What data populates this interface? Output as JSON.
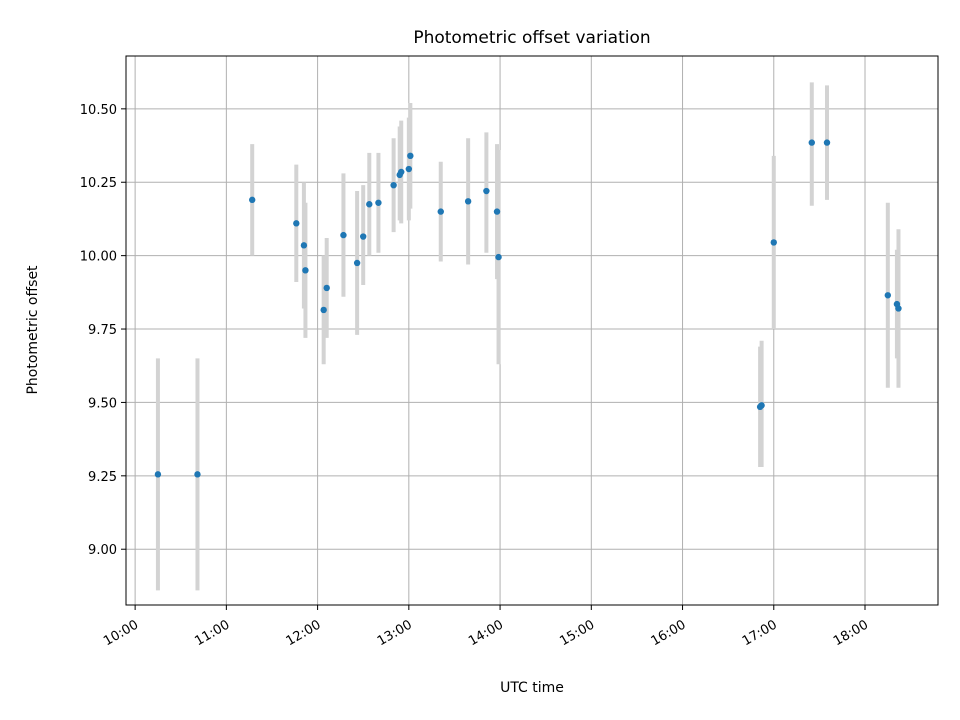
{
  "chart_data": {
    "type": "scatter",
    "title": "Photometric offset variation",
    "xlabel": "UTC time",
    "ylabel": "Photometric offset",
    "x_unit": "time of day (HH:MM)",
    "xlim": [
      "09:54",
      "18:48"
    ],
    "ylim": [
      8.81,
      10.68
    ],
    "x_ticks": [
      "10:00",
      "11:00",
      "12:00",
      "13:00",
      "14:00",
      "15:00",
      "16:00",
      "17:00",
      "18:00"
    ],
    "y_ticks": [
      9.0,
      9.25,
      9.5,
      9.75,
      10.0,
      10.25,
      10.5
    ],
    "y_tick_labels": [
      "9.00",
      "9.25",
      "9.50",
      "9.75",
      "10.00",
      "10.25",
      "10.50"
    ],
    "grid": true,
    "legend": "none",
    "colors": {
      "point": "#1f77b4",
      "errorbar": "#d3d3d3",
      "grid": "#b0b0b0"
    },
    "points": [
      {
        "x": "10:15",
        "y": 9.255,
        "err_low": 8.86,
        "err_high": 9.65
      },
      {
        "x": "10:41",
        "y": 9.255,
        "err_low": 8.86,
        "err_high": 9.65
      },
      {
        "x": "11:17",
        "y": 10.19,
        "err_low": 10.0,
        "err_high": 10.38
      },
      {
        "x": "11:46",
        "y": 10.11,
        "err_low": 9.91,
        "err_high": 10.31
      },
      {
        "x": "11:51",
        "y": 10.035,
        "err_low": 9.82,
        "err_high": 10.25
      },
      {
        "x": "11:52",
        "y": 9.95,
        "err_low": 9.72,
        "err_high": 10.18
      },
      {
        "x": "12:04",
        "y": 9.815,
        "err_low": 9.63,
        "err_high": 10.0
      },
      {
        "x": "12:06",
        "y": 9.89,
        "err_low": 9.72,
        "err_high": 10.06
      },
      {
        "x": "12:17",
        "y": 10.07,
        "err_low": 9.86,
        "err_high": 10.28
      },
      {
        "x": "12:26",
        "y": 9.975,
        "err_low": 9.73,
        "err_high": 10.22
      },
      {
        "x": "12:30",
        "y": 10.065,
        "err_low": 9.9,
        "err_high": 10.24
      },
      {
        "x": "12:34",
        "y": 10.175,
        "err_low": 10.0,
        "err_high": 10.35
      },
      {
        "x": "12:40",
        "y": 10.18,
        "err_low": 10.01,
        "err_high": 10.35
      },
      {
        "x": "12:50",
        "y": 10.24,
        "err_low": 10.08,
        "err_high": 10.4
      },
      {
        "x": "12:54",
        "y": 10.275,
        "err_low": 10.12,
        "err_high": 10.44
      },
      {
        "x": "12:55",
        "y": 10.285,
        "err_low": 10.11,
        "err_high": 10.46
      },
      {
        "x": "13:00",
        "y": 10.295,
        "err_low": 10.12,
        "err_high": 10.47
      },
      {
        "x": "13:01",
        "y": 10.34,
        "err_low": 10.16,
        "err_high": 10.52
      },
      {
        "x": "13:21",
        "y": 10.15,
        "err_low": 9.98,
        "err_high": 10.32
      },
      {
        "x": "13:39",
        "y": 10.185,
        "err_low": 9.97,
        "err_high": 10.4
      },
      {
        "x": "13:51",
        "y": 10.22,
        "err_low": 10.01,
        "err_high": 10.42
      },
      {
        "x": "13:58",
        "y": 10.15,
        "err_low": 9.92,
        "err_high": 10.38
      },
      {
        "x": "13:59",
        "y": 9.995,
        "err_low": 9.63,
        "err_high": 10.36
      },
      {
        "x": "16:51",
        "y": 9.485,
        "err_low": 9.28,
        "err_high": 9.69
      },
      {
        "x": "16:52",
        "y": 9.49,
        "err_low": 9.28,
        "err_high": 9.71
      },
      {
        "x": "17:00",
        "y": 10.045,
        "err_low": 9.75,
        "err_high": 10.34
      },
      {
        "x": "17:25",
        "y": 10.385,
        "err_low": 10.17,
        "err_high": 10.59
      },
      {
        "x": "17:35",
        "y": 10.385,
        "err_low": 10.19,
        "err_high": 10.58
      },
      {
        "x": "18:15",
        "y": 9.865,
        "err_low": 9.55,
        "err_high": 10.18
      },
      {
        "x": "18:21",
        "y": 9.835,
        "err_low": 9.65,
        "err_high": 10.02
      },
      {
        "x": "18:22",
        "y": 9.82,
        "err_low": 9.55,
        "err_high": 10.09
      }
    ]
  }
}
